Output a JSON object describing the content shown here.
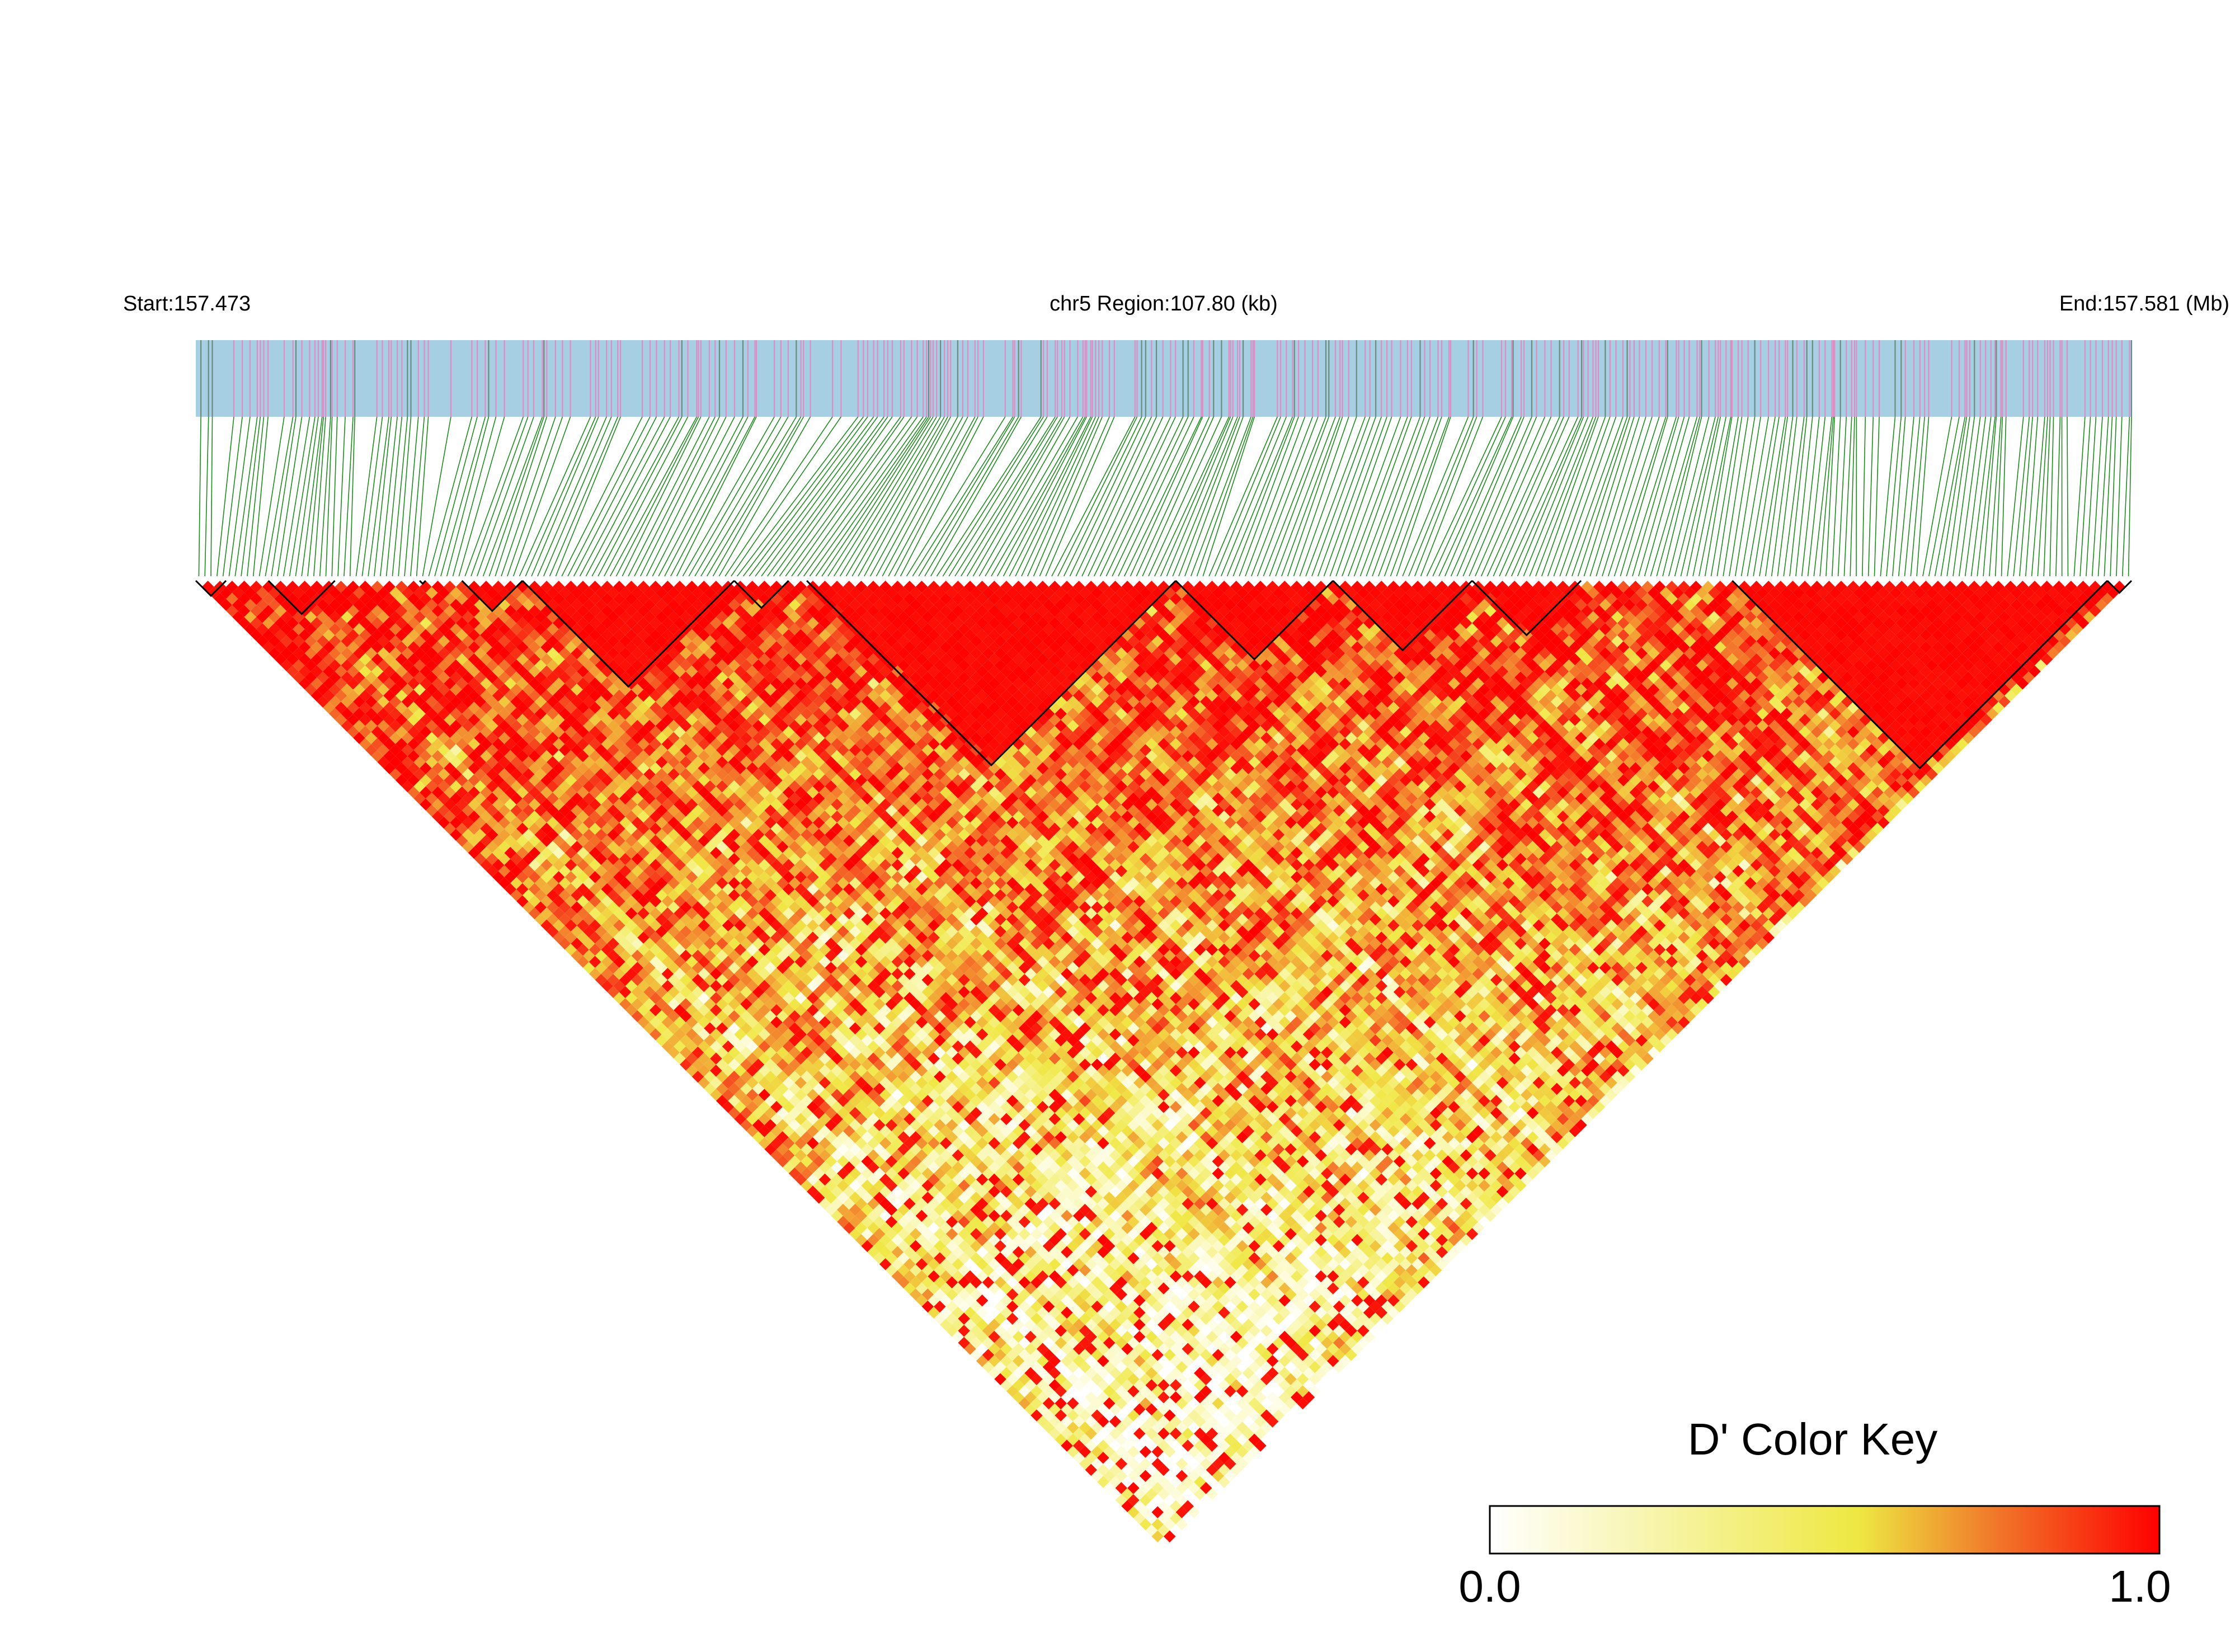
{
  "chart_data": {
    "type": "heatmap",
    "title": "",
    "header": {
      "start_label": "Start:157.473",
      "region_label": "chr5 Region:107.80 (kb)",
      "end_label": "End:157.581 (Mb)"
    },
    "chromosome": "chr5",
    "region_start_mb": 157.473,
    "region_end_mb": 157.581,
    "region_length_kb": 107.8,
    "snp_count": 320,
    "value_range": [
      0.0,
      1.0
    ],
    "colors": {
      "track_background": "#a6cfe3",
      "snp_marker": "#e08cc4",
      "snp_marker_dark": "#6b8a80",
      "connector": "#1f8a1f",
      "high": "#ff0000",
      "mid": "#f2e642",
      "low": "#ffffff",
      "block_outline": "#000000"
    },
    "ld_blocks_mb": [
      [
        157.473,
        157.4757
      ],
      [
        157.4785,
        157.481
      ],
      [
        157.486,
        157.488
      ],
      [
        157.4903,
        157.4952
      ],
      [
        157.4952,
        157.5098
      ],
      [
        157.5098,
        157.5125
      ],
      [
        157.5135,
        157.5312
      ],
      [
        157.5312,
        157.5395
      ],
      [
        157.5395,
        157.548
      ],
      [
        157.548,
        157.5532
      ],
      [
        157.56,
        157.58
      ],
      [
        157.58,
        157.581
      ]
    ],
    "legend": {
      "title": "D' Color Key",
      "min_label": "0.0",
      "max_label": "1.0",
      "stops": [
        0.0,
        0.5,
        1.0
      ]
    }
  }
}
